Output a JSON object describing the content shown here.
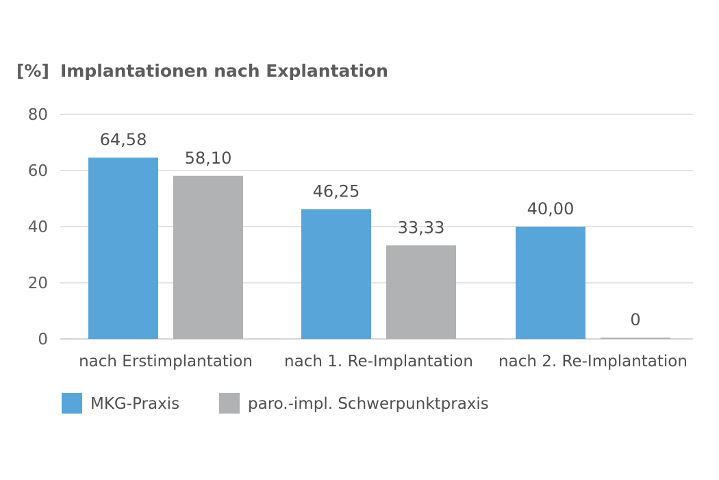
{
  "chart_data": {
    "type": "bar",
    "title_unit": "[%]",
    "title": "Implantationen nach Explantation",
    "categories": [
      "nach Erstimplantation",
      "nach 1. Re-Implantation",
      "nach 2. Re-Implantation"
    ],
    "series": [
      {
        "name": "MKG-Praxis",
        "values": [
          64.58,
          46.25,
          40.0
        ],
        "labels": [
          "64,58",
          "46,25",
          "40,00"
        ],
        "color": "#57a5d9"
      },
      {
        "name": "paro.-impl. Schwerpunktpraxis",
        "values": [
          58.1,
          33.33,
          0
        ],
        "labels": [
          "58,10",
          "33,33",
          "0"
        ],
        "color": "#b1b2b4"
      }
    ],
    "ylim": [
      0,
      80
    ],
    "yticks": [
      0,
      20,
      40,
      60,
      80
    ],
    "grid": true,
    "legend_position": "bottom-left"
  }
}
